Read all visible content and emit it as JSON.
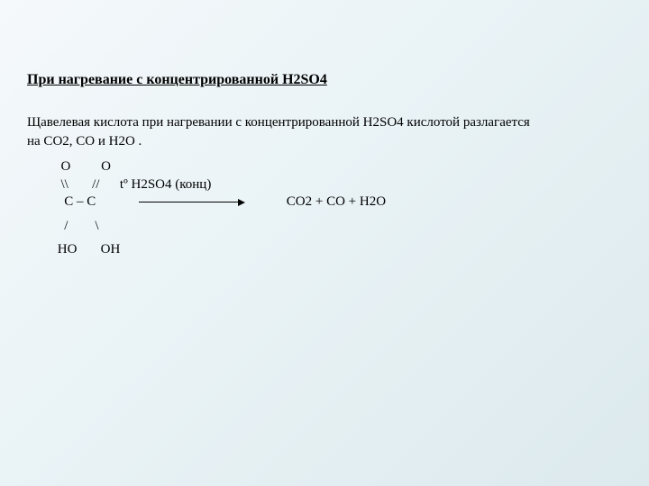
{
  "slide": {
    "heading": "При нагревание с концентрированной  H2SO4",
    "paragraph_l1": "Щавелевая кислота при нагревании с концентрированной H2SO4 кислотой разлагается",
    "paragraph_l2": " на  CO2, CO и H2O .",
    "structure": {
      "line1": "  O         O",
      "line2_left": "  \\\\       //",
      "conditions": "tº  H2SO4 (конц)",
      "line3_left": "   C – C",
      "products": "CO2 + CO + H2O",
      "line4": "   /        \\",
      "line5": " HO       OH"
    }
  },
  "style": {
    "bg_from": "#f5f9fb",
    "bg_to": "#dce9ed",
    "text_color": "#000000",
    "heading_fontsize": 16,
    "body_fontsize": 15,
    "arrow_width": 110
  }
}
